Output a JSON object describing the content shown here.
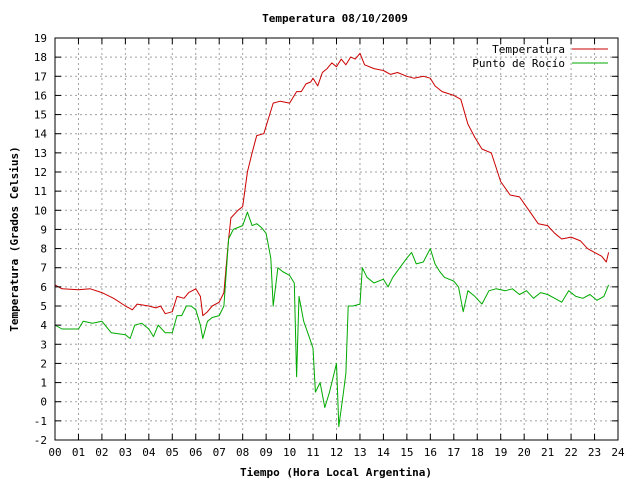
{
  "chart_data": {
    "type": "line",
    "title": "Temperatura 08/10/2009",
    "xlabel": "Tiempo (Hora Local Argentina)",
    "ylabel": "Temperatura (Grados Celsius)",
    "xlim": [
      0,
      24
    ],
    "ylim": [
      -2,
      19
    ],
    "x_tick_labels": [
      "00",
      "01",
      "02",
      "03",
      "04",
      "05",
      "06",
      "07",
      "08",
      "09",
      "10",
      "11",
      "12",
      "13",
      "14",
      "15",
      "16",
      "17",
      "18",
      "19",
      "20",
      "21",
      "22",
      "23",
      "24"
    ],
    "y_tick_labels": [
      "-2",
      "-1",
      "0",
      "1",
      "2",
      "3",
      "4",
      "5",
      "6",
      "7",
      "8",
      "9",
      "10",
      "11",
      "12",
      "13",
      "14",
      "15",
      "16",
      "17",
      "18",
      "19"
    ],
    "grid": true,
    "legend_position": "top-right",
    "series": [
      {
        "name": "Temperatura",
        "color": "#cc0000",
        "points": [
          [
            0.0,
            6.1
          ],
          [
            0.3,
            5.9
          ],
          [
            1.0,
            5.85
          ],
          [
            1.5,
            5.9
          ],
          [
            2.0,
            5.7
          ],
          [
            2.5,
            5.4
          ],
          [
            3.0,
            5.0
          ],
          [
            3.3,
            4.8
          ],
          [
            3.5,
            5.1
          ],
          [
            4.0,
            5.0
          ],
          [
            4.3,
            4.9
          ],
          [
            4.5,
            5.0
          ],
          [
            4.7,
            4.6
          ],
          [
            5.0,
            4.7
          ],
          [
            5.2,
            5.5
          ],
          [
            5.5,
            5.4
          ],
          [
            5.7,
            5.7
          ],
          [
            6.0,
            5.9
          ],
          [
            6.2,
            5.5
          ],
          [
            6.3,
            4.5
          ],
          [
            6.5,
            4.7
          ],
          [
            6.7,
            5.0
          ],
          [
            7.0,
            5.2
          ],
          [
            7.2,
            5.7
          ],
          [
            7.4,
            8.5
          ],
          [
            7.5,
            9.6
          ],
          [
            7.8,
            10.0
          ],
          [
            8.0,
            10.2
          ],
          [
            8.2,
            12.0
          ],
          [
            8.4,
            13.0
          ],
          [
            8.6,
            13.9
          ],
          [
            8.9,
            14.0
          ],
          [
            9.1,
            14.8
          ],
          [
            9.3,
            15.6
          ],
          [
            9.6,
            15.7
          ],
          [
            10.0,
            15.6
          ],
          [
            10.3,
            16.2
          ],
          [
            10.5,
            16.2
          ],
          [
            10.7,
            16.6
          ],
          [
            10.9,
            16.7
          ],
          [
            11.0,
            16.9
          ],
          [
            11.2,
            16.5
          ],
          [
            11.4,
            17.2
          ],
          [
            11.6,
            17.4
          ],
          [
            11.8,
            17.7
          ],
          [
            12.0,
            17.5
          ],
          [
            12.2,
            17.9
          ],
          [
            12.4,
            17.6
          ],
          [
            12.6,
            18.0
          ],
          [
            12.8,
            17.9
          ],
          [
            13.0,
            18.2
          ],
          [
            13.2,
            17.6
          ],
          [
            13.6,
            17.4
          ],
          [
            14.0,
            17.3
          ],
          [
            14.3,
            17.1
          ],
          [
            14.6,
            17.2
          ],
          [
            15.0,
            17.0
          ],
          [
            15.3,
            16.9
          ],
          [
            15.7,
            17.0
          ],
          [
            16.0,
            16.9
          ],
          [
            16.2,
            16.5
          ],
          [
            16.5,
            16.2
          ],
          [
            17.0,
            16.0
          ],
          [
            17.3,
            15.8
          ],
          [
            17.6,
            14.5
          ],
          [
            17.9,
            13.8
          ],
          [
            18.2,
            13.2
          ],
          [
            18.6,
            13.0
          ],
          [
            19.0,
            11.5
          ],
          [
            19.4,
            10.8
          ],
          [
            19.8,
            10.7
          ],
          [
            20.2,
            10.0
          ],
          [
            20.6,
            9.3
          ],
          [
            21.0,
            9.2
          ],
          [
            21.3,
            8.8
          ],
          [
            21.6,
            8.5
          ],
          [
            22.0,
            8.6
          ],
          [
            22.4,
            8.4
          ],
          [
            22.7,
            8.0
          ],
          [
            23.0,
            7.8
          ],
          [
            23.3,
            7.6
          ],
          [
            23.5,
            7.3
          ],
          [
            23.6,
            7.8
          ]
        ]
      },
      {
        "name": "Punto de Rocío",
        "color": "#00aa00",
        "points": [
          [
            0.0,
            4.0
          ],
          [
            0.3,
            3.8
          ],
          [
            1.0,
            3.8
          ],
          [
            1.2,
            4.2
          ],
          [
            1.6,
            4.1
          ],
          [
            2.0,
            4.2
          ],
          [
            2.4,
            3.6
          ],
          [
            3.0,
            3.5
          ],
          [
            3.2,
            3.3
          ],
          [
            3.4,
            4.0
          ],
          [
            3.7,
            4.1
          ],
          [
            4.0,
            3.8
          ],
          [
            4.2,
            3.4
          ],
          [
            4.4,
            4.0
          ],
          [
            4.7,
            3.6
          ],
          [
            5.0,
            3.6
          ],
          [
            5.2,
            4.5
          ],
          [
            5.4,
            4.5
          ],
          [
            5.6,
            5.0
          ],
          [
            5.8,
            5.0
          ],
          [
            6.0,
            4.8
          ],
          [
            6.2,
            4.0
          ],
          [
            6.3,
            3.3
          ],
          [
            6.5,
            4.2
          ],
          [
            6.7,
            4.4
          ],
          [
            7.0,
            4.5
          ],
          [
            7.2,
            5.0
          ],
          [
            7.4,
            8.5
          ],
          [
            7.6,
            9.0
          ],
          [
            8.0,
            9.2
          ],
          [
            8.2,
            9.9
          ],
          [
            8.4,
            9.2
          ],
          [
            8.6,
            9.3
          ],
          [
            8.8,
            9.1
          ],
          [
            9.0,
            8.8
          ],
          [
            9.2,
            7.5
          ],
          [
            9.3,
            5.0
          ],
          [
            9.5,
            7.0
          ],
          [
            9.7,
            6.8
          ],
          [
            10.0,
            6.6
          ],
          [
            10.2,
            6.2
          ],
          [
            10.3,
            1.3
          ],
          [
            10.4,
            5.5
          ],
          [
            10.6,
            4.2
          ],
          [
            10.8,
            3.5
          ],
          [
            11.0,
            2.8
          ],
          [
            11.1,
            0.5
          ],
          [
            11.3,
            1.0
          ],
          [
            11.5,
            -0.3
          ],
          [
            11.7,
            0.5
          ],
          [
            11.9,
            1.5
          ],
          [
            12.0,
            2.0
          ],
          [
            12.1,
            -1.3
          ],
          [
            12.3,
            0.5
          ],
          [
            12.4,
            1.5
          ],
          [
            12.5,
            5.0
          ],
          [
            12.7,
            5.0
          ],
          [
            13.0,
            5.1
          ],
          [
            13.1,
            7.0
          ],
          [
            13.3,
            6.5
          ],
          [
            13.6,
            6.2
          ],
          [
            14.0,
            6.4
          ],
          [
            14.2,
            6.0
          ],
          [
            14.4,
            6.5
          ],
          [
            14.7,
            7.0
          ],
          [
            15.0,
            7.5
          ],
          [
            15.2,
            7.8
          ],
          [
            15.4,
            7.2
          ],
          [
            15.7,
            7.3
          ],
          [
            16.0,
            8.0
          ],
          [
            16.2,
            7.2
          ],
          [
            16.4,
            6.8
          ],
          [
            16.6,
            6.5
          ],
          [
            17.0,
            6.3
          ],
          [
            17.2,
            6.0
          ],
          [
            17.4,
            4.7
          ],
          [
            17.6,
            5.8
          ],
          [
            17.9,
            5.5
          ],
          [
            18.2,
            5.1
          ],
          [
            18.5,
            5.8
          ],
          [
            18.8,
            5.9
          ],
          [
            19.2,
            5.8
          ],
          [
            19.5,
            5.9
          ],
          [
            19.8,
            5.6
          ],
          [
            20.1,
            5.8
          ],
          [
            20.4,
            5.4
          ],
          [
            20.7,
            5.7
          ],
          [
            21.0,
            5.6
          ],
          [
            21.3,
            5.4
          ],
          [
            21.6,
            5.2
          ],
          [
            21.9,
            5.8
          ],
          [
            22.2,
            5.5
          ],
          [
            22.5,
            5.4
          ],
          [
            22.8,
            5.6
          ],
          [
            23.1,
            5.3
          ],
          [
            23.4,
            5.5
          ],
          [
            23.6,
            6.1
          ]
        ]
      }
    ]
  }
}
